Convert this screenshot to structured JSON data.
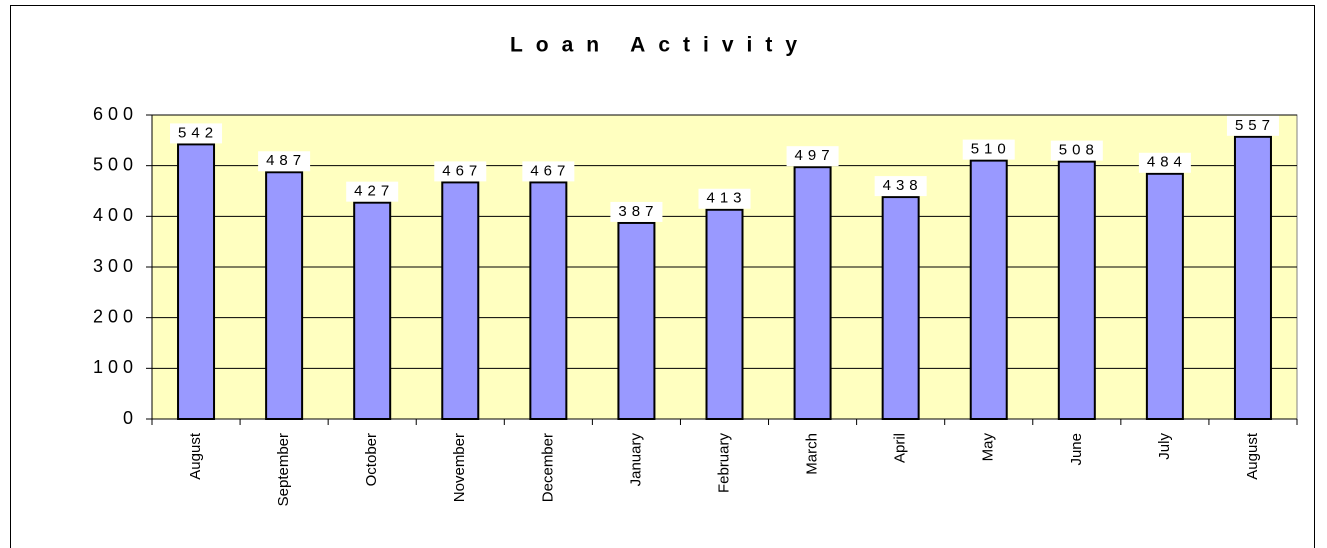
{
  "chart_data": {
    "type": "bar",
    "title": "Loan Activity",
    "categories": [
      "August",
      "September",
      "October",
      "November",
      "December",
      "January",
      "February",
      "March",
      "April",
      "May",
      "June",
      "July",
      "August"
    ],
    "values": [
      542,
      487,
      427,
      467,
      467,
      387,
      413,
      497,
      438,
      510,
      508,
      484,
      557
    ],
    "color": "#9999ff",
    "ylim": [
      0,
      600
    ],
    "yticks": [
      0,
      100,
      200,
      300,
      400,
      500,
      600
    ],
    "grid": true
  }
}
